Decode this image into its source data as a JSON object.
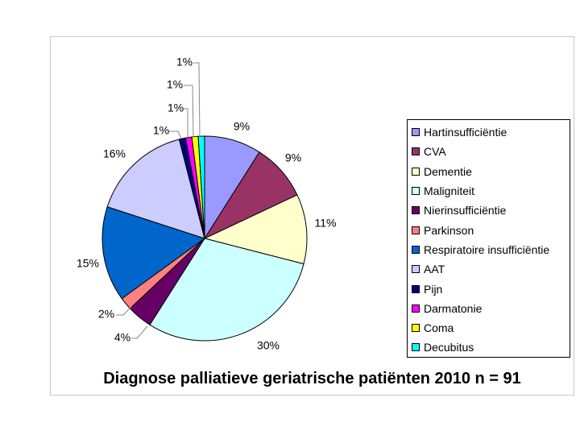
{
  "chart_data": {
    "type": "pie",
    "title": "Diagnose palliatieve geriatrische patiënten 2010 n = 91",
    "categories": [
      "Hartinsufficiëntie",
      "CVA",
      "Dementie",
      "Maligniteit",
      "Nierinsufficiëntie",
      "Parkinson",
      "Respiratoire insufficiëntie",
      "AAT",
      "Pijn",
      "Darmatonie",
      "Coma",
      "Decubitus"
    ],
    "values": [
      9,
      9,
      11,
      30,
      4,
      2,
      15,
      16,
      1,
      1,
      1,
      1
    ],
    "labels": [
      "9%",
      "9%",
      "11%",
      "30%",
      "4%",
      "2%",
      "15%",
      "16%",
      "1%",
      "1%",
      "1%",
      "1%"
    ],
    "colors": [
      "#9999ff",
      "#993366",
      "#ffffcc",
      "#ccffff",
      "#660066",
      "#ff8080",
      "#0066cc",
      "#ccccff",
      "#000080",
      "#ff00ff",
      "#ffff00",
      "#00ffff"
    ],
    "legend_position": "right"
  }
}
